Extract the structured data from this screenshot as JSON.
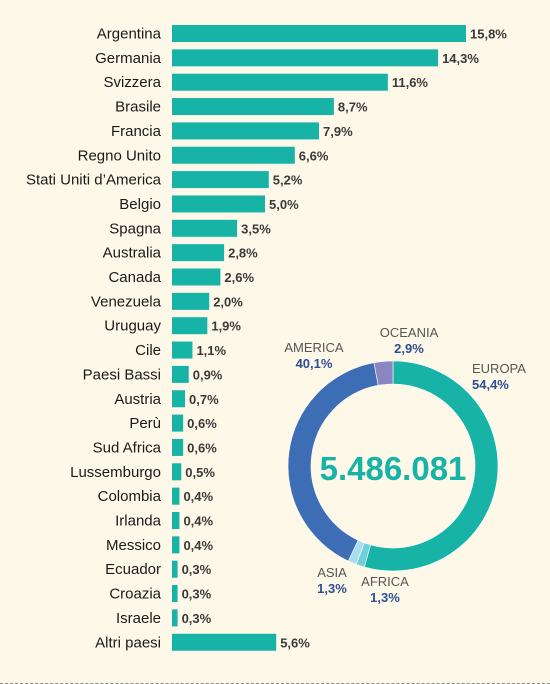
{
  "chart_data": [
    {
      "type": "bar",
      "orientation": "horizontal",
      "categories": [
        "Argentina",
        "Germania",
        "Svizzera",
        "Brasile",
        "Francia",
        "Regno Unito",
        "Stati Uniti d’America",
        "Belgio",
        "Spagna",
        "Australia",
        "Canada",
        "Venezuela",
        "Uruguay",
        "Cile",
        "Paesi Bassi",
        "Austria",
        "Perù",
        "Sud Africa",
        "Lussemburgo",
        "Colombia",
        "Irlanda",
        "Messico",
        "Ecuador",
        "Croazia",
        "Israele",
        "Altri paesi"
      ],
      "values": [
        15.8,
        14.3,
        11.6,
        8.7,
        7.9,
        6.6,
        5.2,
        5.0,
        3.5,
        2.8,
        2.6,
        2.0,
        1.9,
        1.1,
        0.9,
        0.7,
        0.6,
        0.6,
        0.5,
        0.4,
        0.4,
        0.4,
        0.3,
        0.3,
        0.3,
        5.6
      ],
      "value_labels": [
        "15,8%",
        "14,3%",
        "11,6%",
        "8,7%",
        "7,9%",
        "6,6%",
        "5,2%",
        "5,0%",
        "3,5%",
        "2,8%",
        "2,6%",
        "2,0%",
        "1,9%",
        "1,1%",
        "0,9%",
        "0,7%",
        "0,6%",
        "0,6%",
        "0,5%",
        "0,4%",
        "0,4%",
        "0,4%",
        "0,3%",
        "0,3%",
        "0,3%",
        "5,6%"
      ],
      "unit": "%",
      "bar_color": "#17b3a7",
      "xlim": [
        0,
        15.8
      ]
    },
    {
      "type": "pie",
      "style": "donut",
      "center_label": "5.486.081",
      "slices": [
        {
          "name": "EUROPA",
          "value": 54.4,
          "label": "54,4%",
          "color": "#17b3a7"
        },
        {
          "name": "AFRICA",
          "value": 1.3,
          "label": "1,3%",
          "color": "#6fd0d8"
        },
        {
          "name": "ASIA",
          "value": 1.3,
          "label": "1,3%",
          "color": "#a9def0"
        },
        {
          "name": "AMERICA",
          "value": 40.1,
          "label": "40,1%",
          "color": "#3d6eb5"
        },
        {
          "name": "OCEANIA",
          "value": 2.9,
          "label": "2,9%",
          "color": "#8a86c2"
        }
      ]
    }
  ],
  "colors": {
    "background": "#fdf8e8",
    "value_text": "#3a3a3a",
    "legend_value": "#2d4f93"
  }
}
